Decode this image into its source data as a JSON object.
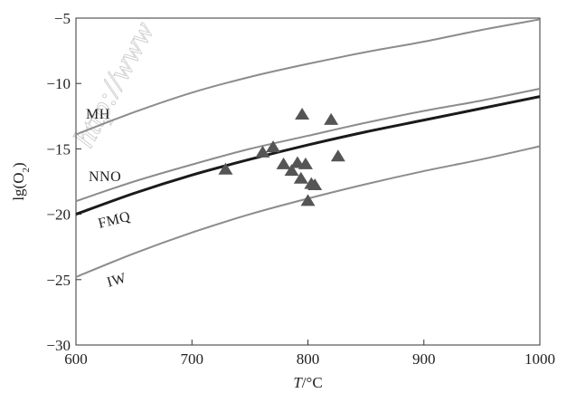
{
  "chart_data": {
    "type": "line",
    "xlabel": "T/°C",
    "ylabel": "lg(O2)",
    "xlim": [
      600,
      1000
    ],
    "ylim": [
      -30,
      -5
    ],
    "x_ticks": [
      "600",
      "700",
      "800",
      "900",
      "1000"
    ],
    "y_ticks": [
      "−30",
      "−25",
      "−20",
      "−15",
      "−10",
      "−5"
    ],
    "grid": false,
    "series": [
      {
        "name": "MH",
        "color": "#8c8c8c",
        "x": [
          600,
          650,
          700,
          750,
          800,
          850,
          900,
          950,
          1000
        ],
        "y": [
          -13.9,
          -12.2,
          -10.7,
          -9.5,
          -8.5,
          -7.6,
          -6.8,
          -5.9,
          -5.1
        ]
      },
      {
        "name": "NNO",
        "color": "#8c8c8c",
        "x": [
          600,
          650,
          700,
          750,
          800,
          850,
          900,
          950,
          1000
        ],
        "y": [
          -19.0,
          -17.5,
          -16.2,
          -15.0,
          -14.0,
          -13.0,
          -12.1,
          -11.3,
          -10.4
        ]
      },
      {
        "name": "FMQ",
        "color": "#1a1a1a",
        "x": [
          600,
          650,
          700,
          750,
          800,
          850,
          900,
          950,
          1000
        ],
        "y": [
          -20.0,
          -18.4,
          -17.0,
          -15.8,
          -14.7,
          -13.7,
          -12.8,
          -11.9,
          -11.0
        ]
      },
      {
        "name": "IW",
        "color": "#8c8c8c",
        "x": [
          600,
          650,
          700,
          750,
          800,
          850,
          900,
          950,
          1000
        ],
        "y": [
          -24.8,
          -23.0,
          -21.4,
          -20.0,
          -18.8,
          -17.7,
          -16.7,
          -15.8,
          -14.8
        ]
      }
    ],
    "points": {
      "marker": "triangle",
      "color": "#555555",
      "x": [
        729,
        761,
        770,
        779,
        786,
        791,
        794,
        795,
        798,
        803,
        806,
        800,
        820,
        826
      ],
      "y": [
        -16.6,
        -15.3,
        -14.9,
        -16.2,
        -16.7,
        -16.1,
        -17.3,
        -12.4,
        -16.2,
        -17.7,
        -17.8,
        -19.0,
        -12.8,
        -15.6
      ]
    },
    "curve_labels": [
      "MH",
      "NNO",
      "FMQ",
      "IW"
    ],
    "watermark": "http://www"
  }
}
